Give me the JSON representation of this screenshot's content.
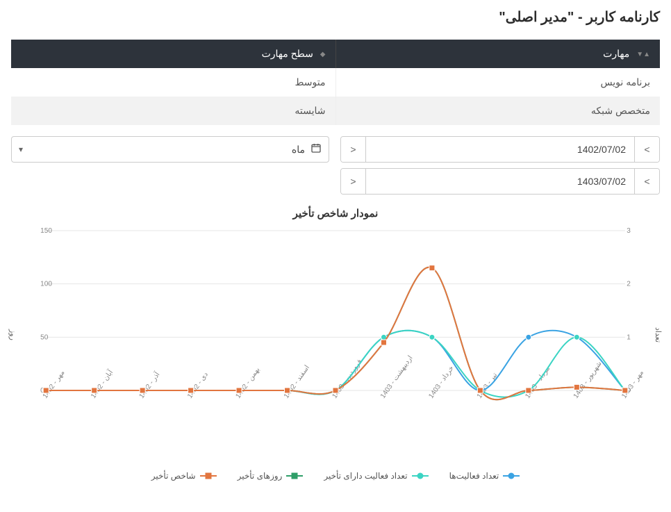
{
  "title": "کارنامه کاربر - \"مدیر اصلی\"",
  "table": {
    "col_skill": "مهارت",
    "col_level": "سطح مهارت",
    "rows": [
      {
        "skill": "برنامه نویس",
        "level": "متوسط"
      },
      {
        "skill": "متخصص شبکه",
        "level": "شایسته"
      }
    ]
  },
  "controls": {
    "date_from": "1402/07/02",
    "date_to": "1403/07/02",
    "month_label": "ماه"
  },
  "chart": {
    "title": "نمودار شاخص تأخیر",
    "categories": [
      "مهر - 1402",
      "آبان - 1402",
      "آذر - 1402",
      "دی - 1402",
      "بهمن - 1402",
      "اسفند - 1402",
      "فروردین - 1403",
      "اردیبهشت - 1403",
      "خرداد - 1403",
      "تیر - 1403",
      "مرداد - 1403",
      "شهریور - 1403",
      "مهر - 1403"
    ],
    "left_axis": {
      "label": "روز",
      "min": 0,
      "max": 150,
      "ticks": [
        0,
        50,
        100,
        150
      ]
    },
    "right_axis": {
      "label": "تعداد",
      "min": 0,
      "max": 3,
      "ticks": [
        0,
        1,
        2,
        3
      ]
    },
    "series": [
      {
        "name": "تعداد فعالیت‌ها",
        "axis": "right",
        "color": "#3aa3e3",
        "marker": "circle",
        "data": [
          0,
          0,
          0,
          0,
          0,
          0,
          0,
          1,
          1,
          0,
          1,
          1,
          0
        ]
      },
      {
        "name": "تعداد فعالیت دارای تأخیر",
        "axis": "right",
        "color": "#3bd4c3",
        "marker": "circle",
        "data": [
          0,
          0,
          0,
          0,
          0,
          0,
          0,
          1,
          1,
          0,
          0,
          1,
          0
        ]
      },
      {
        "name": "روزهای تأخیر",
        "axis": "left",
        "color": "#2e9e68",
        "marker": "square",
        "data": [
          0,
          0,
          0,
          0,
          0,
          0,
          0,
          45,
          115,
          0,
          0,
          3,
          0
        ]
      },
      {
        "name": "شاخص تأخیر",
        "axis": "left",
        "color": "#e2753f",
        "marker": "square",
        "data": [
          0,
          0,
          0,
          0,
          0,
          0,
          0,
          45,
          115,
          0,
          0,
          3,
          0
        ]
      }
    ],
    "colors": {
      "grid": "#e6e6e6",
      "axis_text": "#888888",
      "background": "#ffffff"
    },
    "fontsize": {
      "tick": 10,
      "axis_label": 11
    }
  }
}
